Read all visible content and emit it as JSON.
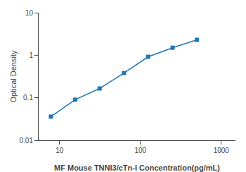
{
  "chart_data": {
    "type": "line",
    "x": [
      7.8,
      15.6,
      31.25,
      62.5,
      125,
      250,
      500
    ],
    "values": [
      0.036,
      0.09,
      0.165,
      0.38,
      0.92,
      1.5,
      2.3
    ],
    "xlim": [
      5.5,
      1500
    ],
    "ylim": [
      0.01,
      10
    ],
    "xticks": [
      10,
      100,
      1000
    ],
    "yticks": [
      0.01,
      0.1,
      1,
      10
    ],
    "log": true,
    "grid": false,
    "marker": "square",
    "xlabel": "MF Mouse TNNI3/cTn-I Concentration(pg/mL)",
    "ylabel": "Optical Density"
  }
}
